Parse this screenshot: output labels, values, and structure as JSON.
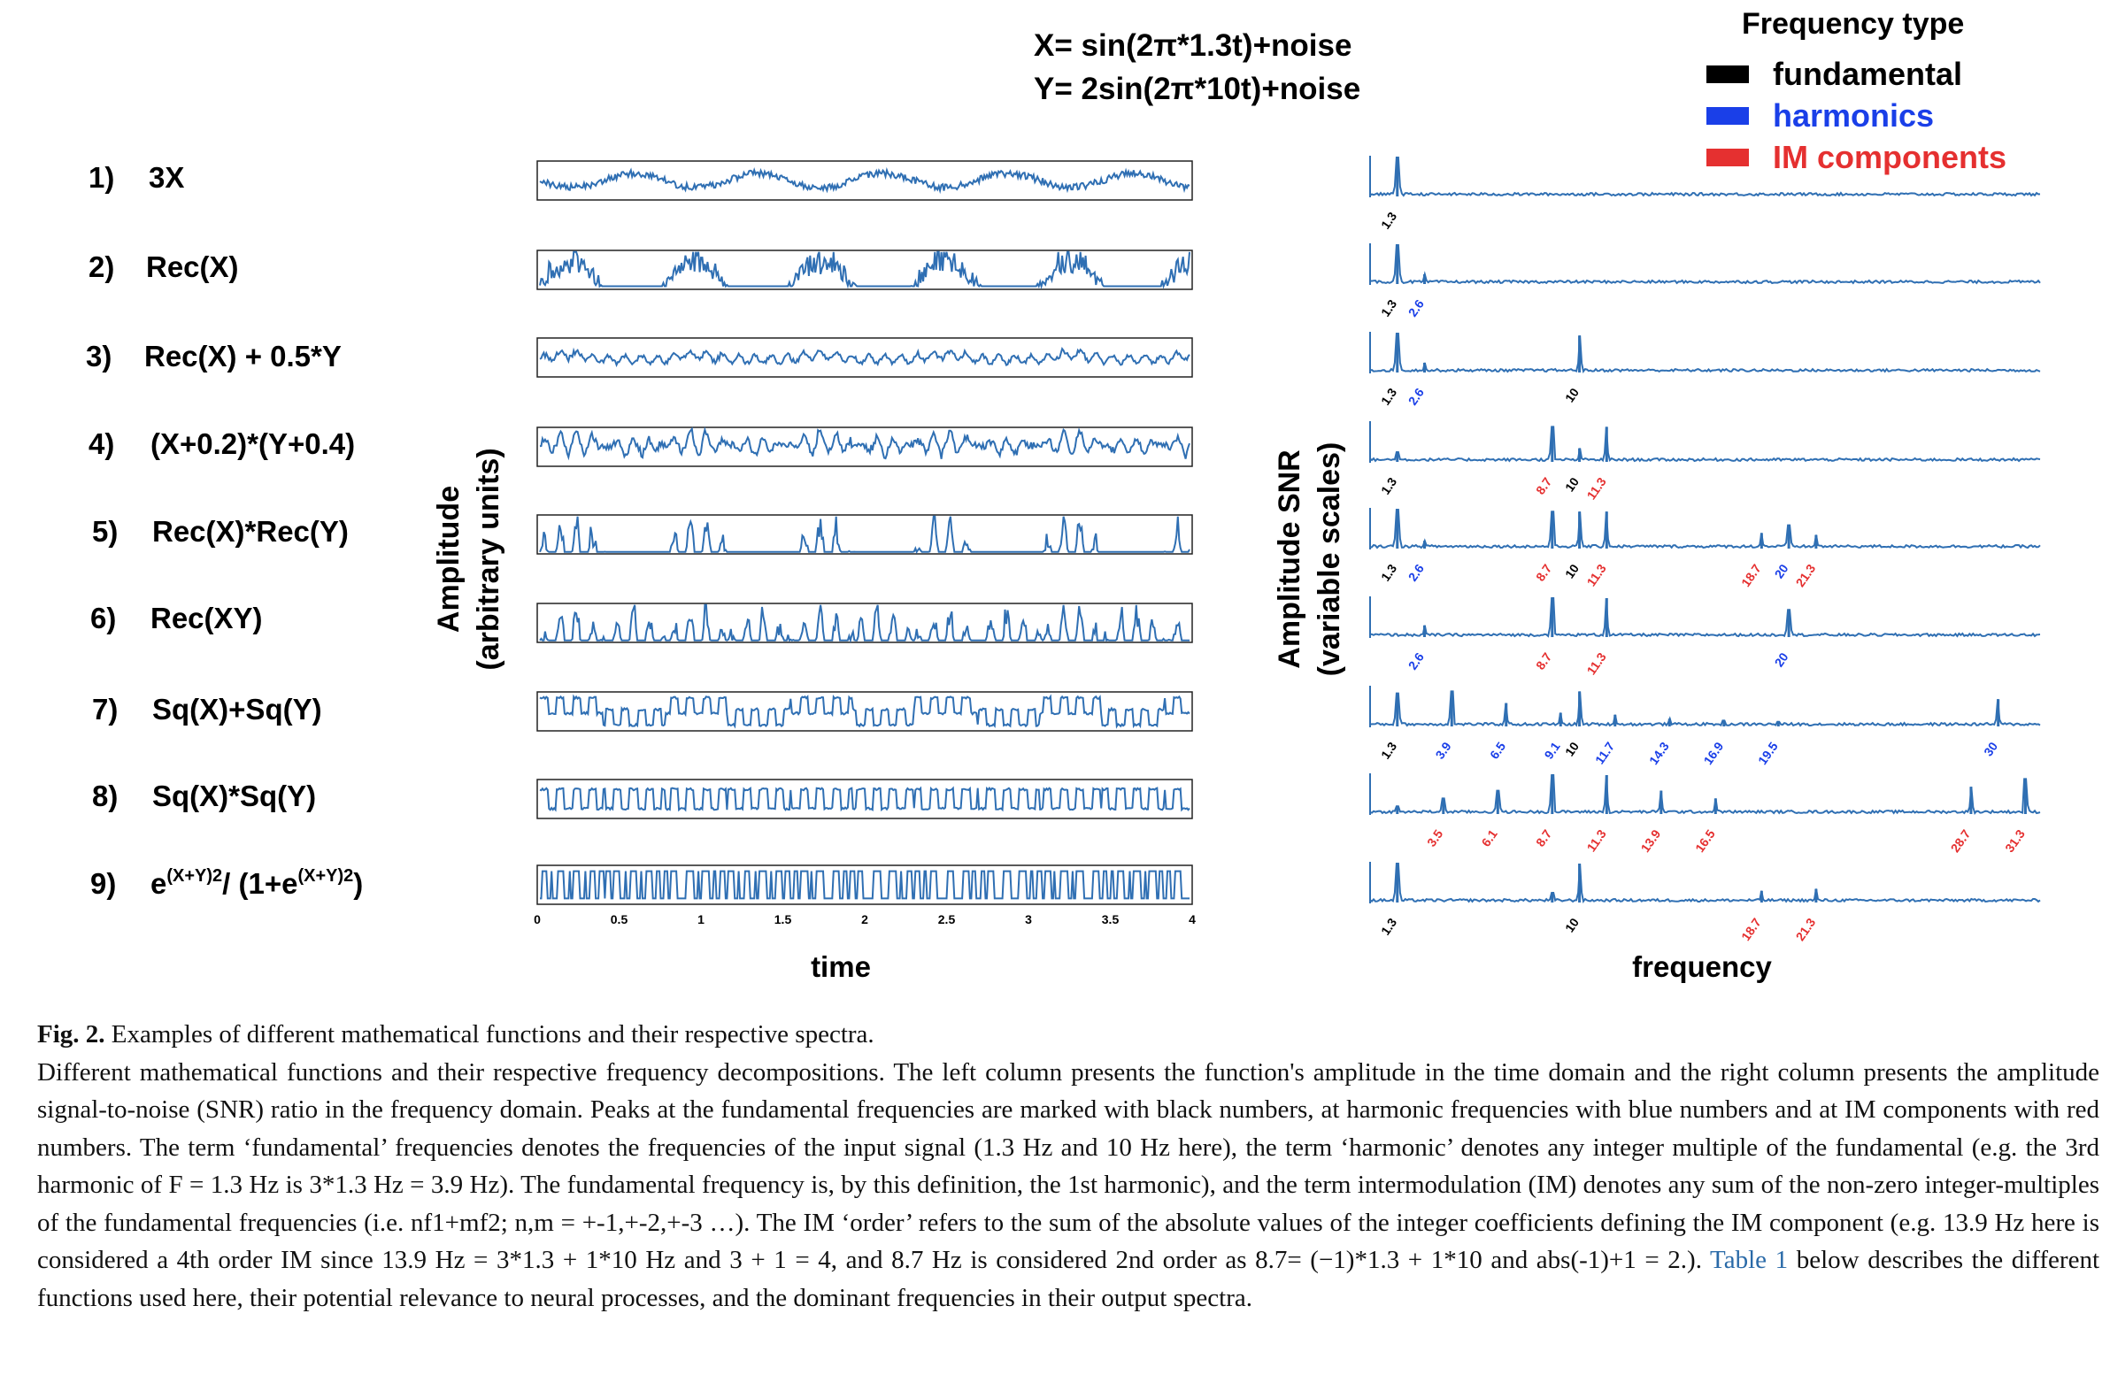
{
  "formula": {
    "x_def": "X=  sin(2π*1.3t)+noise",
    "y_def": "Y= 2sin(2π*10t)+noise"
  },
  "legend": {
    "title": "Frequency type",
    "items": [
      {
        "label": "fundamental",
        "color": "#000000"
      },
      {
        "label": "harmonics",
        "color": "#1a3fe8"
      },
      {
        "label": "IM components",
        "color": "#e53030"
      }
    ]
  },
  "functions": [
    {
      "num": "1)",
      "label": "3X"
    },
    {
      "num": "2)",
      "label": "Rec(X)"
    },
    {
      "num": "3)",
      "label": "Rec(X) + 0.5*Y"
    },
    {
      "num": "4)",
      "label": "(X+0.2)*(Y+0.4)"
    },
    {
      "num": "5)",
      "label": "Rec(X)*Rec(Y)"
    },
    {
      "num": "6)",
      "label": "Rec(XY)"
    },
    {
      "num": "7)",
      "label": "Sq(X)+Sq(Y)"
    },
    {
      "num": "8)",
      "label": "Sq(X)*Sq(Y)"
    },
    {
      "num": "9)",
      "label_base": "e",
      "label_exp1": "(X+Y)2",
      "label_mid": "/ (1+e",
      "label_exp2": "(X+Y)2",
      "label_end": ")"
    }
  ],
  "chart_data": [
    {
      "type": "line",
      "name": "time-domain",
      "xlabel": "time",
      "ylabel": [
        "Amplitude",
        "(arbitrary units)"
      ],
      "xlim": [
        0,
        4
      ],
      "xticks": [
        "0",
        "0.5",
        "1",
        "1.5",
        "2",
        "2.5",
        "3",
        "3.5",
        "4"
      ],
      "series_shapes": [
        "sine",
        "rect",
        "rect-sine",
        "product",
        "rectrect",
        "rectprod",
        "square-sum",
        "square-product",
        "logistic"
      ]
    },
    {
      "type": "line",
      "name": "frequency-domain",
      "xlabel": "frequency",
      "ylabel": [
        "Amplitude SNR",
        "(variable scales)"
      ],
      "xlim": [
        0,
        32
      ],
      "colors": {
        "fundamental": "#000000",
        "harmonic": "#1a3fe8",
        "im": "#e53030"
      },
      "spectra": [
        {
          "peaks": [
            {
              "f": 1.3,
              "h": 1.0,
              "label": "1.3",
              "kind": "fundamental"
            }
          ]
        },
        {
          "peaks": [
            {
              "f": 1.3,
              "h": 1.0,
              "label": "1.3",
              "kind": "fundamental"
            },
            {
              "f": 2.6,
              "h": 0.25,
              "label": "2.6",
              "kind": "harmonic"
            }
          ]
        },
        {
          "peaks": [
            {
              "f": 1.3,
              "h": 1.0,
              "label": "1.3",
              "kind": "fundamental"
            },
            {
              "f": 2.6,
              "h": 0.25,
              "label": "2.6",
              "kind": "harmonic"
            },
            {
              "f": 10,
              "h": 0.95,
              "label": "10",
              "kind": "fundamental"
            }
          ]
        },
        {
          "peaks": [
            {
              "f": 1.3,
              "h": 0.25,
              "label": "1.3",
              "kind": "fundamental"
            },
            {
              "f": 8.7,
              "h": 0.9,
              "label": "8.7",
              "kind": "im"
            },
            {
              "f": 10,
              "h": 0.35,
              "label": "10",
              "kind": "fundamental"
            },
            {
              "f": 11.3,
              "h": 0.9,
              "label": "11.3",
              "kind": "im"
            }
          ]
        },
        {
          "peaks": [
            {
              "f": 1.3,
              "h": 1.0,
              "label": "1.3",
              "kind": "fundamental"
            },
            {
              "f": 2.6,
              "h": 0.2,
              "label": "2.6",
              "kind": "harmonic"
            },
            {
              "f": 8.7,
              "h": 0.95,
              "label": "8.7",
              "kind": "im"
            },
            {
              "f": 10,
              "h": 0.95,
              "label": "10",
              "kind": "fundamental"
            },
            {
              "f": 11.3,
              "h": 0.95,
              "label": "11.3",
              "kind": "im"
            },
            {
              "f": 18.7,
              "h": 0.4,
              "label": "18.7",
              "kind": "im"
            },
            {
              "f": 20,
              "h": 0.6,
              "label": "20",
              "kind": "harmonic"
            },
            {
              "f": 21.3,
              "h": 0.35,
              "label": "21.3",
              "kind": "im"
            }
          ]
        },
        {
          "peaks": [
            {
              "f": 2.6,
              "h": 0.3,
              "label": "2.6",
              "kind": "harmonic"
            },
            {
              "f": 8.7,
              "h": 1.0,
              "label": "8.7",
              "kind": "im"
            },
            {
              "f": 11.3,
              "h": 1.0,
              "label": "11.3",
              "kind": "im"
            },
            {
              "f": 20,
              "h": 0.7,
              "label": "20",
              "kind": "harmonic"
            }
          ]
        },
        {
          "peaks": [
            {
              "f": 1.3,
              "h": 0.85,
              "label": "1.3",
              "kind": "fundamental"
            },
            {
              "f": 3.9,
              "h": 0.9,
              "label": "3.9",
              "kind": "harmonic"
            },
            {
              "f": 6.5,
              "h": 0.6,
              "label": "6.5",
              "kind": "harmonic"
            },
            {
              "f": 9.1,
              "h": 0.35,
              "label": "9.1",
              "kind": "harmonic"
            },
            {
              "f": 10,
              "h": 0.9,
              "label": "10",
              "kind": "fundamental"
            },
            {
              "f": 11.7,
              "h": 0.3,
              "label": "11.7",
              "kind": "harmonic"
            },
            {
              "f": 14.3,
              "h": 0.2,
              "label": "14.3",
              "kind": "harmonic"
            },
            {
              "f": 16.9,
              "h": 0.15,
              "label": "16.9",
              "kind": "harmonic"
            },
            {
              "f": 19.5,
              "h": 0.12,
              "label": "19.5",
              "kind": "harmonic"
            },
            {
              "f": 30,
              "h": 0.7,
              "label": "30",
              "kind": "harmonic"
            }
          ]
        },
        {
          "peaks": [
            {
              "f": 1.3,
              "h": 0.2,
              "label": "",
              "kind": "fundamental"
            },
            {
              "f": 3.5,
              "h": 0.4,
              "label": "3.5",
              "kind": "im"
            },
            {
              "f": 6.1,
              "h": 0.6,
              "label": "6.1",
              "kind": "im"
            },
            {
              "f": 8.7,
              "h": 1.0,
              "label": "8.7",
              "kind": "im"
            },
            {
              "f": 11.3,
              "h": 1.0,
              "label": "11.3",
              "kind": "im"
            },
            {
              "f": 13.9,
              "h": 0.6,
              "label": "13.9",
              "kind": "im"
            },
            {
              "f": 16.5,
              "h": 0.4,
              "label": "16.5",
              "kind": "im"
            },
            {
              "f": 28.7,
              "h": 0.7,
              "label": "28.7",
              "kind": "im"
            },
            {
              "f": 31.3,
              "h": 0.9,
              "label": "31.3",
              "kind": "im"
            }
          ]
        },
        {
          "peaks": [
            {
              "f": 1.3,
              "h": 1.0,
              "label": "1.3",
              "kind": "fundamental"
            },
            {
              "f": 8.7,
              "h": 0.25,
              "label": "",
              "kind": "im"
            },
            {
              "f": 10,
              "h": 1.0,
              "label": "10",
              "kind": "fundamental"
            },
            {
              "f": 18.7,
              "h": 0.3,
              "label": "18.7",
              "kind": "im"
            },
            {
              "f": 21.3,
              "h": 0.35,
              "label": "21.3",
              "kind": "im"
            }
          ]
        }
      ]
    }
  ],
  "caption": {
    "fig_label": "Fig. 2.",
    "title": " Examples of different mathematical functions and their respective spectra.",
    "body_before_link": "Different mathematical functions and their respective frequency decompositions. The left column presents the function's amplitude in the time domain and the right column presents the amplitude signal-to-noise (SNR) ratio in the frequency domain. Peaks at the fundamental frequencies are marked with black numbers, at harmonic frequencies with blue numbers and at IM components with red numbers. The term ‘fundamental’ frequencies denotes the frequencies of the input signal (1.3 Hz and 10 Hz here), the term ‘harmonic’ denotes any integer multiple of the fundamental (e.g. the 3rd harmonic of F = 1.3 Hz is 3*1.3 Hz = 3.9 Hz). The fundamental frequency is, by this definition, the 1st harmonic), and the term intermodulation (IM) denotes any sum of the non-zero integer-multiples of the fundamental frequencies (i.e. nf1+mf2; n,m = +-1,+-2,+-3 …). The IM ‘order’ refers to the sum of the absolute values of the integer coefficients defining the IM component (e.g. 13.9 Hz here is considered a 4th order IM since 13.9 Hz = 3*1.3 + 1*10 Hz and 3 + 1 = 4, and 8.7 Hz is considered 2nd order as 8.7= (−1)*1.3 + 1*10 and abs(-1)+1 = 2.). ",
    "link_text": "Table 1",
    "body_after_link": " below describes the different functions used here, their potential relevance to neural processes, and the dominant frequencies in their output spectra."
  }
}
